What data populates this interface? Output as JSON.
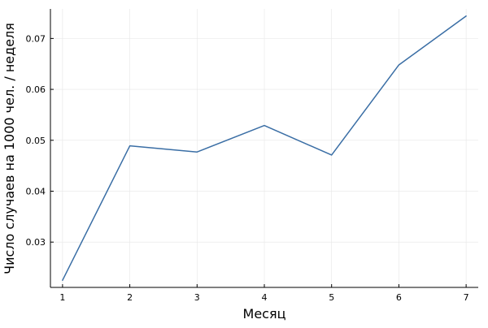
{
  "chart_data": {
    "type": "line",
    "title": "",
    "xlabel": "Месяц",
    "ylabel": "Число случаев на 1000 чел. / неделя",
    "x": [
      1,
      2,
      3,
      4,
      5,
      6,
      7
    ],
    "series": [
      {
        "values": [
          0.0225,
          0.0489,
          0.0477,
          0.0529,
          0.0471,
          0.0648,
          0.0744
        ],
        "color": "#3a6ea5"
      }
    ],
    "xticks": [
      1,
      2,
      3,
      4,
      5,
      6,
      7
    ],
    "xtick_labels": [
      "1",
      "2",
      "3",
      "4",
      "5",
      "6",
      "7"
    ],
    "yticks": [
      0.03,
      0.04,
      0.05,
      0.06,
      0.07
    ],
    "ytick_labels": [
      "0.03",
      "0.04",
      "0.05",
      "0.06",
      "0.07"
    ],
    "xlim": [
      0.82,
      7.18
    ],
    "ylim": [
      0.0211,
      0.0758
    ],
    "grid": true,
    "legend": "none"
  }
}
